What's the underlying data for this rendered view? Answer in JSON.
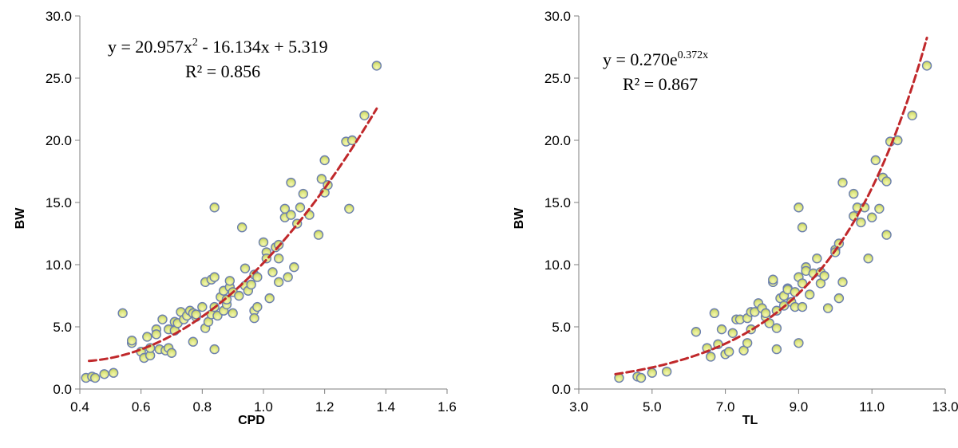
{
  "chart_data": [
    {
      "type": "scatter",
      "xlabel": "CPD",
      "ylabel": "BW",
      "xlim": [
        0.4,
        1.6
      ],
      "ylim": [
        0.0,
        30.0
      ],
      "xticks": [
        "0.4",
        "0.6",
        "0.8",
        "1.0",
        "1.2",
        "1.4",
        "1.6"
      ],
      "yticks": [
        "0.0",
        "5.0",
        "10.0",
        "15.0",
        "20.0",
        "25.0",
        "30.0"
      ],
      "grid": false,
      "equation_parts": [
        "y = 20.957x",
        "2",
        " - 16.134x + 5.319"
      ],
      "r2_text": "R² = 0.856",
      "trendline": {
        "type": "polynomial",
        "coefficients": [
          20.957,
          -16.134,
          5.319
        ],
        "x_range": [
          0.43,
          1.37
        ],
        "color": "#c0282b"
      },
      "marker_color": "#d9e37a",
      "marker_edge": "#6b7fae",
      "points": [
        [
          0.42,
          0.9
        ],
        [
          0.44,
          1.0
        ],
        [
          0.45,
          0.9
        ],
        [
          0.48,
          1.2
        ],
        [
          0.51,
          1.3
        ],
        [
          0.54,
          6.1
        ],
        [
          0.57,
          3.7
        ],
        [
          0.57,
          3.9
        ],
        [
          0.6,
          3.0
        ],
        [
          0.61,
          2.5
        ],
        [
          0.62,
          4.2
        ],
        [
          0.63,
          2.7
        ],
        [
          0.63,
          3.3
        ],
        [
          0.65,
          4.8
        ],
        [
          0.65,
          4.4
        ],
        [
          0.66,
          3.2
        ],
        [
          0.67,
          5.6
        ],
        [
          0.68,
          3.1
        ],
        [
          0.69,
          3.3
        ],
        [
          0.69,
          4.8
        ],
        [
          0.7,
          2.9
        ],
        [
          0.71,
          4.7
        ],
        [
          0.71,
          5.4
        ],
        [
          0.72,
          5.3
        ],
        [
          0.73,
          6.2
        ],
        [
          0.74,
          5.6
        ],
        [
          0.75,
          5.9
        ],
        [
          0.76,
          6.3
        ],
        [
          0.77,
          6.1
        ],
        [
          0.77,
          3.8
        ],
        [
          0.78,
          5.8
        ],
        [
          0.78,
          6.0
        ],
        [
          0.8,
          6.6
        ],
        [
          0.81,
          8.6
        ],
        [
          0.81,
          4.9
        ],
        [
          0.82,
          5.4
        ],
        [
          0.83,
          6.0
        ],
        [
          0.83,
          8.8
        ],
        [
          0.84,
          9.0
        ],
        [
          0.84,
          6.6
        ],
        [
          0.84,
          14.6
        ],
        [
          0.84,
          3.2
        ],
        [
          0.85,
          5.9
        ],
        [
          0.86,
          7.4
        ],
        [
          0.87,
          7.9
        ],
        [
          0.87,
          6.3
        ],
        [
          0.88,
          6.8
        ],
        [
          0.88,
          7.2
        ],
        [
          0.89,
          8.2
        ],
        [
          0.89,
          8.7
        ],
        [
          0.9,
          7.8
        ],
        [
          0.9,
          6.1
        ],
        [
          0.92,
          7.5
        ],
        [
          0.93,
          13.0
        ],
        [
          0.94,
          9.7
        ],
        [
          0.94,
          8.3
        ],
        [
          0.95,
          7.9
        ],
        [
          0.96,
          8.4
        ],
        [
          0.97,
          9.2
        ],
        [
          0.97,
          6.3
        ],
        [
          0.97,
          5.7
        ],
        [
          0.98,
          9.0
        ],
        [
          0.98,
          6.6
        ],
        [
          1.0,
          11.8
        ],
        [
          1.01,
          11.0
        ],
        [
          1.01,
          10.5
        ],
        [
          1.02,
          7.3
        ],
        [
          1.03,
          9.4
        ],
        [
          1.04,
          11.4
        ],
        [
          1.05,
          11.6
        ],
        [
          1.05,
          8.6
        ],
        [
          1.05,
          10.5
        ],
        [
          1.07,
          14.5
        ],
        [
          1.07,
          13.8
        ],
        [
          1.08,
          9.0
        ],
        [
          1.09,
          14.0
        ],
        [
          1.09,
          16.6
        ],
        [
          1.1,
          9.8
        ],
        [
          1.11,
          13.3
        ],
        [
          1.12,
          14.6
        ],
        [
          1.13,
          15.7
        ],
        [
          1.15,
          14.0
        ],
        [
          1.18,
          12.4
        ],
        [
          1.19,
          16.9
        ],
        [
          1.2,
          18.4
        ],
        [
          1.2,
          15.8
        ],
        [
          1.21,
          16.4
        ],
        [
          1.27,
          19.9
        ],
        [
          1.28,
          14.5
        ],
        [
          1.29,
          20.0
        ],
        [
          1.33,
          22.0
        ],
        [
          1.37,
          26.0
        ]
      ]
    },
    {
      "type": "scatter",
      "xlabel": "TL",
      "ylabel": "BW",
      "xlim": [
        3.0,
        13.0
      ],
      "ylim": [
        0.0,
        30.0
      ],
      "xticks": [
        "3.0",
        "5.0",
        "7.0",
        "9.0",
        "11.0",
        "13.0"
      ],
      "yticks": [
        "0.0",
        "5.0",
        "10.0",
        "15.0",
        "20.0",
        "25.0",
        "30.0"
      ],
      "grid": false,
      "equation_parts": [
        "y = 0.270e",
        "0.372x"
      ],
      "r2_text": "R² = 0.867",
      "trendline": {
        "type": "exponential",
        "a": 0.27,
        "b": 0.372,
        "x_range": [
          4.0,
          12.5
        ],
        "color": "#c0282b"
      },
      "marker_color": "#d9e37a",
      "marker_edge": "#6b7fae",
      "points": [
        [
          4.1,
          0.9
        ],
        [
          4.6,
          1.0
        ],
        [
          4.7,
          0.9
        ],
        [
          5.0,
          1.3
        ],
        [
          5.4,
          1.4
        ],
        [
          6.2,
          4.6
        ],
        [
          6.5,
          3.3
        ],
        [
          6.6,
          2.6
        ],
        [
          6.7,
          6.1
        ],
        [
          6.8,
          3.6
        ],
        [
          6.9,
          4.8
        ],
        [
          7.0,
          2.8
        ],
        [
          7.1,
          3.0
        ],
        [
          7.2,
          4.5
        ],
        [
          7.3,
          5.6
        ],
        [
          7.4,
          5.6
        ],
        [
          7.5,
          3.1
        ],
        [
          7.6,
          3.7
        ],
        [
          7.6,
          5.7
        ],
        [
          7.7,
          6.2
        ],
        [
          7.7,
          4.8
        ],
        [
          7.8,
          6.2
        ],
        [
          7.9,
          6.9
        ],
        [
          8.0,
          6.5
        ],
        [
          8.1,
          5.8
        ],
        [
          8.1,
          6.1
        ],
        [
          8.2,
          5.3
        ],
        [
          8.3,
          8.6
        ],
        [
          8.3,
          8.8
        ],
        [
          8.4,
          6.3
        ],
        [
          8.4,
          4.9
        ],
        [
          8.4,
          3.2
        ],
        [
          8.5,
          7.3
        ],
        [
          8.6,
          6.7
        ],
        [
          8.6,
          7.5
        ],
        [
          8.7,
          8.1
        ],
        [
          8.7,
          8.0
        ],
        [
          8.8,
          7.0
        ],
        [
          8.9,
          7.8
        ],
        [
          8.9,
          6.6
        ],
        [
          9.0,
          9.0
        ],
        [
          9.0,
          3.7
        ],
        [
          9.0,
          14.6
        ],
        [
          9.1,
          13.0
        ],
        [
          9.1,
          6.6
        ],
        [
          9.1,
          8.5
        ],
        [
          9.2,
          9.8
        ],
        [
          9.2,
          9.5
        ],
        [
          9.3,
          7.6
        ],
        [
          9.4,
          9.3
        ],
        [
          9.5,
          10.5
        ],
        [
          9.6,
          8.5
        ],
        [
          9.6,
          9.4
        ],
        [
          9.7,
          9.1
        ],
        [
          9.8,
          6.5
        ],
        [
          10.0,
          11.2
        ],
        [
          10.0,
          11.0
        ],
        [
          10.1,
          7.3
        ],
        [
          10.1,
          11.7
        ],
        [
          10.2,
          8.6
        ],
        [
          10.2,
          16.6
        ],
        [
          10.5,
          15.7
        ],
        [
          10.5,
          13.9
        ],
        [
          10.6,
          14.6
        ],
        [
          10.7,
          13.4
        ],
        [
          10.8,
          14.6
        ],
        [
          10.9,
          10.5
        ],
        [
          11.0,
          13.8
        ],
        [
          11.1,
          18.4
        ],
        [
          11.2,
          14.5
        ],
        [
          11.3,
          17.0
        ],
        [
          11.4,
          16.7
        ],
        [
          11.4,
          12.4
        ],
        [
          11.5,
          19.9
        ],
        [
          11.7,
          20.0
        ],
        [
          12.1,
          22.0
        ],
        [
          12.5,
          26.0
        ]
      ]
    }
  ]
}
